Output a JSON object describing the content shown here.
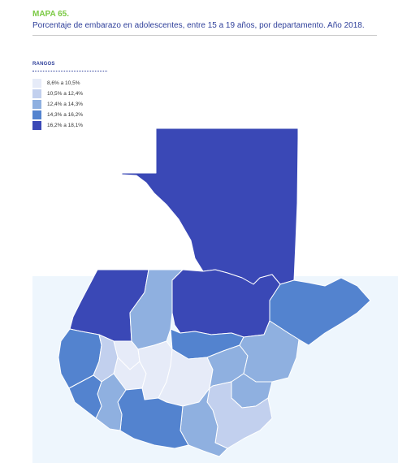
{
  "header": {
    "map_number": "MAPA 65.",
    "title": "Porcentaje de embarazo en adolescentes, entre 15 a 19 años, por departamento. Año 2018."
  },
  "legend": {
    "title": "RANGOS",
    "items": [
      {
        "label": "8,6% a 10,5%",
        "color": "#e6ebf8"
      },
      {
        "label": "10,5% a 12,4%",
        "color": "#c2d0ee"
      },
      {
        "label": "12,4% a 14,3%",
        "color": "#8fb0e0"
      },
      {
        "label": "14,3% a 16,2%",
        "color": "#5383cf"
      },
      {
        "label": "16,2% a 18,1%",
        "color": "#3a48b6"
      }
    ]
  },
  "colors": {
    "ocean": "#eef6fd",
    "border": "#ffffff"
  }
}
